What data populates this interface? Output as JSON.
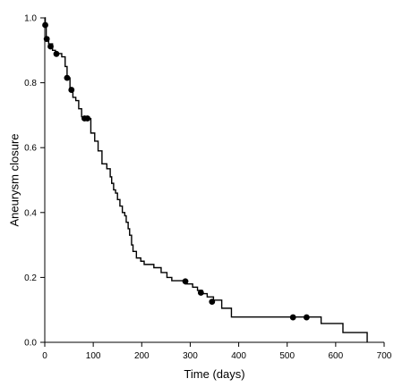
{
  "chart_data": {
    "type": "line",
    "title": "",
    "xlabel": "Time (days)",
    "ylabel": "Aneurysm closure",
    "xlim": [
      0,
      700
    ],
    "ylim": [
      0,
      1.0
    ],
    "xticks": [
      0,
      100,
      200,
      300,
      400,
      500,
      600,
      700
    ],
    "yticks": [
      0.0,
      0.2,
      0.4,
      0.6,
      0.8,
      1.0
    ],
    "xtick_labels": [
      "0",
      "100",
      "200",
      "300",
      "400",
      "500",
      "600",
      "700"
    ],
    "ytick_labels": [
      "0.0",
      "0.2",
      "0.4",
      "0.6",
      "0.8",
      "1.0"
    ],
    "grid": false,
    "step_style": "post",
    "line_color": "#000000",
    "series": [
      {
        "step_points": [
          [
            0,
            1.0
          ],
          [
            1,
            0.98
          ],
          [
            3,
            0.94
          ],
          [
            8,
            0.92
          ],
          [
            16,
            0.9
          ],
          [
            22,
            0.89
          ],
          [
            35,
            0.88
          ],
          [
            42,
            0.85
          ],
          [
            46,
            0.815
          ],
          [
            52,
            0.78
          ],
          [
            58,
            0.755
          ],
          [
            64,
            0.745
          ],
          [
            70,
            0.72
          ],
          [
            76,
            0.695
          ],
          [
            85,
            0.69
          ],
          [
            95,
            0.645
          ],
          [
            103,
            0.62
          ],
          [
            110,
            0.59
          ],
          [
            118,
            0.55
          ],
          [
            128,
            0.535
          ],
          [
            135,
            0.51
          ],
          [
            138,
            0.49
          ],
          [
            142,
            0.47
          ],
          [
            146,
            0.46
          ],
          [
            150,
            0.44
          ],
          [
            155,
            0.42
          ],
          [
            160,
            0.4
          ],
          [
            165,
            0.39
          ],
          [
            168,
            0.37
          ],
          [
            172,
            0.35
          ],
          [
            175,
            0.33
          ],
          [
            179,
            0.3
          ],
          [
            182,
            0.28
          ],
          [
            189,
            0.26
          ],
          [
            198,
            0.25
          ],
          [
            205,
            0.24
          ],
          [
            225,
            0.23
          ],
          [
            240,
            0.215
          ],
          [
            252,
            0.2
          ],
          [
            262,
            0.19
          ],
          [
            290,
            0.18
          ],
          [
            305,
            0.17
          ],
          [
            315,
            0.16
          ],
          [
            325,
            0.15
          ],
          [
            335,
            0.14
          ],
          [
            348,
            0.13
          ],
          [
            365,
            0.105
          ],
          [
            385,
            0.078
          ],
          [
            570,
            0.058
          ],
          [
            615,
            0.03
          ],
          [
            665,
            0.0
          ]
        ],
        "censored": [
          [
            1,
            0.978
          ],
          [
            4,
            0.935
          ],
          [
            12,
            0.912
          ],
          [
            24,
            0.889
          ],
          [
            46,
            0.815
          ],
          [
            55,
            0.778
          ],
          [
            82,
            0.69
          ],
          [
            88,
            0.69
          ],
          [
            290,
            0.188
          ],
          [
            322,
            0.153
          ],
          [
            345,
            0.125
          ],
          [
            512,
            0.077
          ],
          [
            540,
            0.077
          ]
        ]
      }
    ]
  }
}
